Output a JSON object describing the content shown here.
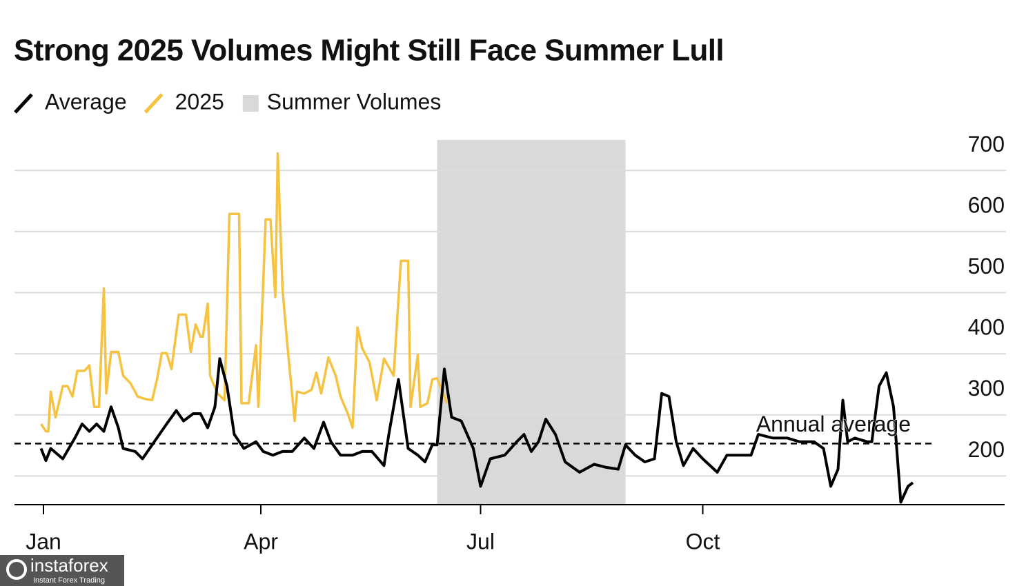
{
  "chart_data": {
    "type": "line",
    "title": "Strong 2025 Volumes Might Still Face Summer Lull",
    "xlim": [
      -12,
      398
    ],
    "xticks": [
      {
        "value": 0,
        "label": "Jan"
      },
      {
        "value": 90,
        "label": "Apr"
      },
      {
        "value": 181,
        "label": "Jul"
      },
      {
        "value": 273,
        "label": "Oct"
      }
    ],
    "ylim": [
      153,
      750
    ],
    "yticks": [
      200,
      300,
      400,
      500,
      600,
      700
    ],
    "grid": true,
    "shade": {
      "name": "Summer Volumes",
      "color": "#d9d9d9",
      "x": [
        163,
        241
      ]
    },
    "reference_line": {
      "label": "Annual average",
      "value": 253
    },
    "series": [
      {
        "name": "Average",
        "color": "#000000",
        "x": [
          -1,
          1,
          3,
          8,
          13,
          16,
          19,
          22,
          25,
          28,
          31,
          33,
          38,
          41,
          45,
          51,
          55,
          58,
          62,
          65,
          68,
          71,
          73,
          76,
          79,
          83,
          88,
          91,
          95,
          99,
          103,
          108,
          112,
          116,
          119,
          123,
          128,
          132,
          136,
          141,
          143,
          147,
          151,
          155,
          158,
          161,
          163,
          166,
          169,
          173,
          178,
          181,
          185,
          191,
          196,
          199,
          202,
          205,
          208,
          212,
          216,
          222,
          228,
          233,
          238,
          241,
          245,
          249,
          253,
          256,
          259,
          262,
          265,
          269,
          273,
          279,
          283,
          288,
          293,
          296,
          302,
          308,
          313,
          319,
          323,
          326,
          329,
          331,
          333,
          336,
          341,
          343,
          346,
          349,
          352,
          355,
          358,
          360
        ],
        "values": [
          245,
          225,
          245,
          228,
          262,
          285,
          273,
          285,
          273,
          313,
          279,
          245,
          240,
          228,
          251,
          285,
          307,
          290,
          302,
          302,
          279,
          313,
          392,
          347,
          268,
          245,
          256,
          240,
          234,
          240,
          240,
          262,
          245,
          288,
          256,
          234,
          234,
          240,
          240,
          217,
          268,
          358,
          245,
          234,
          223,
          251,
          251,
          375,
          296,
          290,
          245,
          183,
          228,
          234,
          256,
          268,
          240,
          256,
          293,
          268,
          223,
          206,
          219,
          214,
          211,
          251,
          234,
          223,
          228,
          335,
          330,
          256,
          217,
          245,
          228,
          206,
          234,
          234,
          234,
          268,
          262,
          262,
          256,
          256,
          245,
          183,
          211,
          324,
          256,
          262,
          256,
          256,
          347,
          369,
          313,
          157,
          183,
          189
        ]
      },
      {
        "name": "2025",
        "color": "#f5c242",
        "x": [
          -1,
          1,
          2,
          3,
          5,
          8,
          10,
          12,
          14,
          17,
          19,
          21,
          23,
          25,
          26,
          28,
          31,
          33,
          36,
          39,
          42,
          45,
          47,
          49,
          51,
          53,
          56,
          59,
          61,
          63,
          65,
          66,
          68,
          69,
          72,
          75,
          77,
          81,
          82,
          85,
          88,
          89,
          92,
          94,
          96,
          97,
          99,
          101,
          104,
          105,
          108,
          111,
          113,
          115,
          118,
          121,
          123,
          126,
          128,
          130,
          132,
          135,
          138,
          141,
          145,
          148,
          151,
          152,
          155,
          156,
          159,
          161,
          163,
          166,
          167
        ],
        "values": [
          285,
          273,
          273,
          338,
          296,
          347,
          347,
          330,
          372,
          372,
          381,
          313,
          313,
          507,
          335,
          403,
          403,
          364,
          352,
          330,
          326,
          324,
          358,
          401,
          401,
          375,
          464,
          464,
          403,
          448,
          428,
          428,
          482,
          364,
          335,
          324,
          629,
          629,
          319,
          319,
          414,
          313,
          620,
          620,
          493,
          728,
          505,
          414,
          290,
          338,
          335,
          341,
          369,
          335,
          394,
          364,
          330,
          302,
          279,
          443,
          409,
          386,
          324,
          392,
          364,
          552,
          552,
          313,
          398,
          313,
          319,
          358,
          360,
          330,
          319
        ]
      }
    ]
  },
  "watermark": {
    "brand": "instaforex",
    "tagline": "Instant Forex Trading"
  }
}
